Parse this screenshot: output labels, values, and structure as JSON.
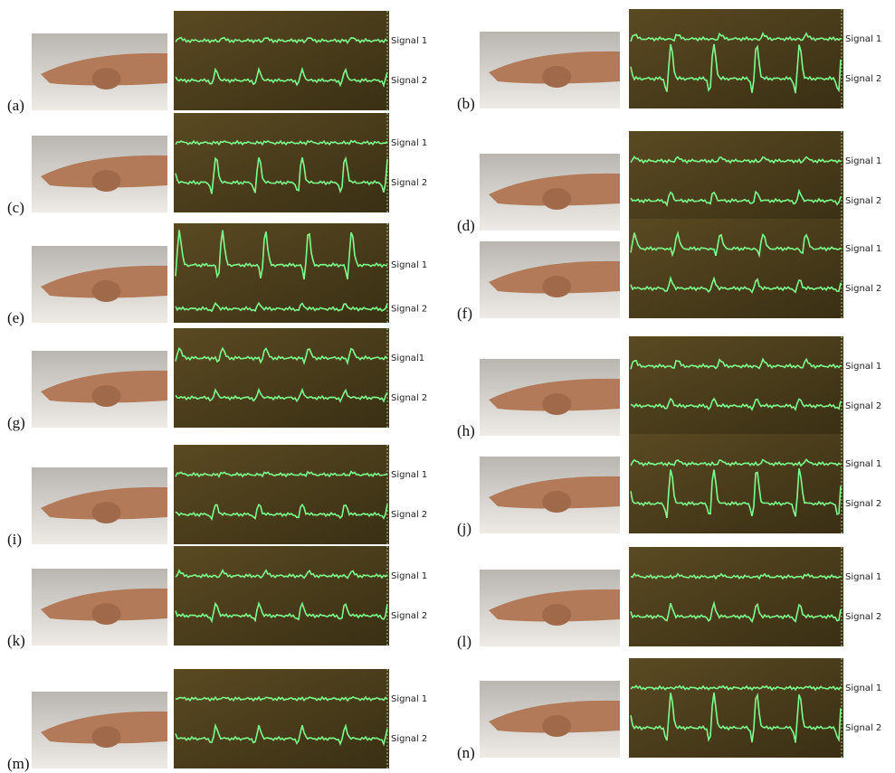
{
  "panels": [
    {
      "label": "(a)",
      "signals": [
        "Signal 1",
        "Signal 2"
      ]
    },
    {
      "label": "(b)",
      "signals": [
        "Signal 1",
        "Signal 2"
      ]
    },
    {
      "label": "(c)",
      "signals": [
        "Signal 1",
        "Signal 2"
      ]
    },
    {
      "label": "(d)",
      "signals": [
        "Signal 1",
        "Signal 2"
      ]
    },
    {
      "label": "(e)",
      "signals": [
        "Signal 1",
        "Signal 2"
      ]
    },
    {
      "label": "(f)",
      "signals": [
        "Signal 1",
        "Signal 2"
      ]
    },
    {
      "label": "(g)",
      "signals": [
        "Signal1",
        "Signal 2"
      ]
    },
    {
      "label": "(h)",
      "signals": [
        "Signal 1",
        "Signal 2"
      ]
    },
    {
      "label": "(i)",
      "signals": [
        "Signal 1",
        "Signal 2"
      ]
    },
    {
      "label": "(j)",
      "signals": [
        "Signal 1",
        "Signal 2"
      ]
    },
    {
      "label": "(k)",
      "signals": [
        "Signal 1",
        "Signal 2"
      ]
    },
    {
      "label": "(l)",
      "signals": [
        "Signal 1",
        "Signal 2"
      ]
    },
    {
      "label": "(m)",
      "signals": [
        "Signal 1",
        "Signal 2"
      ]
    },
    {
      "label": "(n)",
      "signals": [
        "Signal 1",
        "Signal 2"
      ]
    }
  ]
}
